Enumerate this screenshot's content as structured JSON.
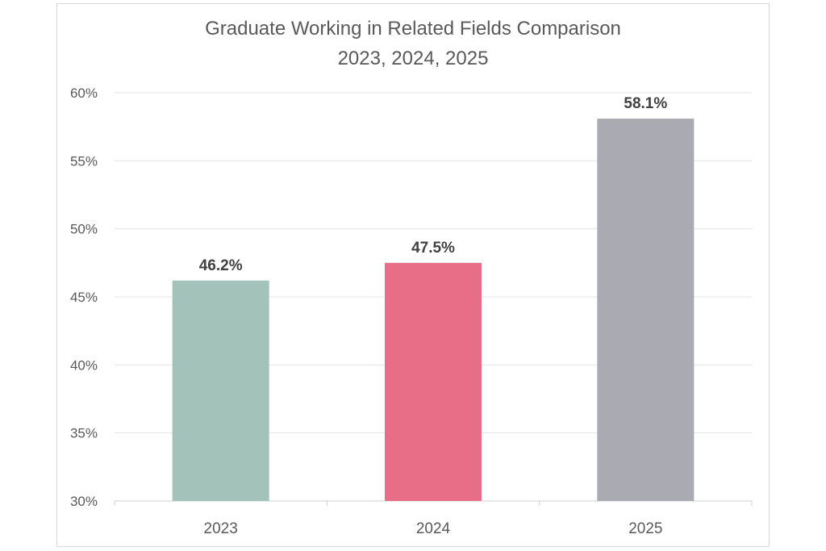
{
  "chart_data": {
    "type": "bar",
    "title": "Graduate Working in Related Fields Comparison",
    "subtitle": "2023, 2024, 2025",
    "categories": [
      "2023",
      "2024",
      "2025"
    ],
    "values": [
      46.2,
      47.5,
      58.1
    ],
    "data_labels": [
      "46.2%",
      "47.5%",
      "58.1%"
    ],
    "colors": [
      "#a3c2b9",
      "#e86d86",
      "#aaaab2"
    ],
    "ylim": [
      30,
      60
    ],
    "yticks": [
      30,
      35,
      40,
      45,
      50,
      55,
      60
    ],
    "ytick_labels": [
      "30%",
      "35%",
      "40%",
      "45%",
      "50%",
      "55%",
      "60%"
    ],
    "grid": true
  }
}
